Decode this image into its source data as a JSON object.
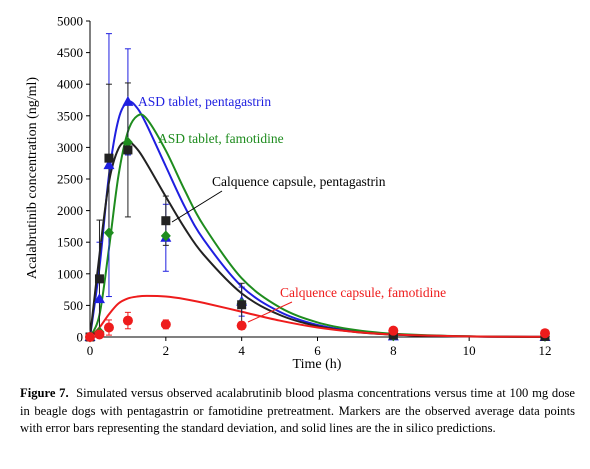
{
  "caption": {
    "label": "Figure 7.",
    "text": "Simulated versus observed acalabrutinib blood plasma concentrations versus time at 100 mg dose in beagle dogs with pentagastrin or famotidine pretreatment. Markers are the observed average data points with error bars representing the standard deviation, and solid lines are the in silico predictions."
  },
  "chart_data": {
    "type": "scatter",
    "xlabel": "Time (h)",
    "ylabel": "Acalabrutinib concentration (ng/ml)",
    "xlim": [
      0,
      12
    ],
    "ylim": [
      0,
      5000
    ],
    "xticks": [
      "0",
      "2",
      "4",
      "6",
      "8",
      "10",
      "12"
    ],
    "yticks": [
      "0",
      "500",
      "1000",
      "1500",
      "2000",
      "2500",
      "3000",
      "3500",
      "4000",
      "4500",
      "5000"
    ],
    "grid": false,
    "legend": "none (series labelled by annotations)",
    "series": [
      {
        "name": "ASD tablet, pentagastrin",
        "color": "#1f1fe0",
        "marker": "triangle",
        "observed": {
          "x": [
            0,
            0.25,
            0.5,
            1,
            2,
            4,
            8,
            12
          ],
          "y": [
            0,
            600,
            2720,
            3720,
            1570,
            560,
            10,
            0
          ],
          "sd": [
            0,
            900,
            2080,
            840,
            530,
            230,
            10,
            0
          ]
        },
        "predicted": {
          "x": [
            0,
            0.25,
            0.5,
            0.75,
            1,
            1.25,
            1.5,
            2,
            2.5,
            3,
            4,
            5,
            6,
            7,
            8,
            10,
            12
          ],
          "y": [
            0,
            1100,
            2560,
            3440,
            3720,
            3620,
            3350,
            2700,
            2060,
            1540,
            800,
            400,
            190,
            90,
            42,
            9,
            2
          ]
        }
      },
      {
        "name": "ASD tablet, famotidine",
        "color": "#1e8c1e",
        "marker": "diamond",
        "observed": {
          "x": [
            0,
            0.25,
            0.5,
            1,
            2,
            4,
            8,
            12
          ],
          "y": [
            0,
            80,
            1650,
            3080,
            1600,
            530,
            20,
            10
          ],
          "sd": [
            0,
            0,
            0,
            0,
            0,
            0,
            0,
            0
          ]
        },
        "predicted": {
          "x": [
            0,
            0.25,
            0.5,
            0.75,
            1,
            1.25,
            1.5,
            2,
            2.5,
            3,
            4,
            5,
            6,
            7,
            8,
            10,
            12
          ],
          "y": [
            0,
            350,
            1400,
            2550,
            3250,
            3500,
            3450,
            2950,
            2320,
            1760,
            930,
            470,
            230,
            110,
            52,
            11,
            2
          ]
        }
      },
      {
        "name": "Calquence capsule, pentagastrin",
        "color": "#222222",
        "marker": "square",
        "observed": {
          "x": [
            0,
            0.25,
            0.5,
            1,
            2,
            4,
            8,
            12
          ],
          "y": [
            0,
            920,
            2830,
            2960,
            1840,
            510,
            30,
            10
          ],
          "sd": [
            0,
            930,
            1170,
            1060,
            390,
            340,
            10,
            0
          ]
        },
        "predicted": {
          "x": [
            0,
            0.25,
            0.5,
            0.75,
            1,
            1.25,
            1.5,
            2,
            2.5,
            3,
            4,
            5,
            6,
            7,
            8,
            10,
            12
          ],
          "y": [
            0,
            1300,
            2450,
            2980,
            3090,
            2970,
            2740,
            2220,
            1720,
            1300,
            690,
            350,
            170,
            80,
            38,
            8,
            2
          ]
        }
      },
      {
        "name": "Calquence capsule, famotidine",
        "color": "#ee1c1c",
        "marker": "circle",
        "observed": {
          "x": [
            0,
            0.25,
            0.5,
            1,
            2,
            4,
            8,
            12
          ],
          "y": [
            0,
            40,
            150,
            260,
            200,
            180,
            100,
            60
          ],
          "sd": [
            0,
            30,
            120,
            130,
            70,
            60,
            0,
            0
          ]
        },
        "predicted": {
          "x": [
            0,
            0.25,
            0.5,
            0.75,
            1,
            1.25,
            1.5,
            2,
            2.5,
            3,
            4,
            5,
            6,
            7,
            8,
            10,
            12
          ],
          "y": [
            0,
            150,
            360,
            530,
            610,
            640,
            650,
            640,
            600,
            540,
            400,
            260,
            150,
            80,
            40,
            10,
            3
          ]
        }
      }
    ],
    "annotations": [
      {
        "text": "ASD tablet, pentagastrin",
        "color": "#1f1fe0",
        "series": 0
      },
      {
        "text": "ASD tablet, famotidine",
        "color": "#1e8c1e",
        "series": 1
      },
      {
        "text": "Calquence capsule, pentagastrin",
        "color": "#000000",
        "series": 2
      },
      {
        "text": "Calquence capsule, famotidine",
        "color": "#ee1c1c",
        "series": 3
      }
    ]
  }
}
